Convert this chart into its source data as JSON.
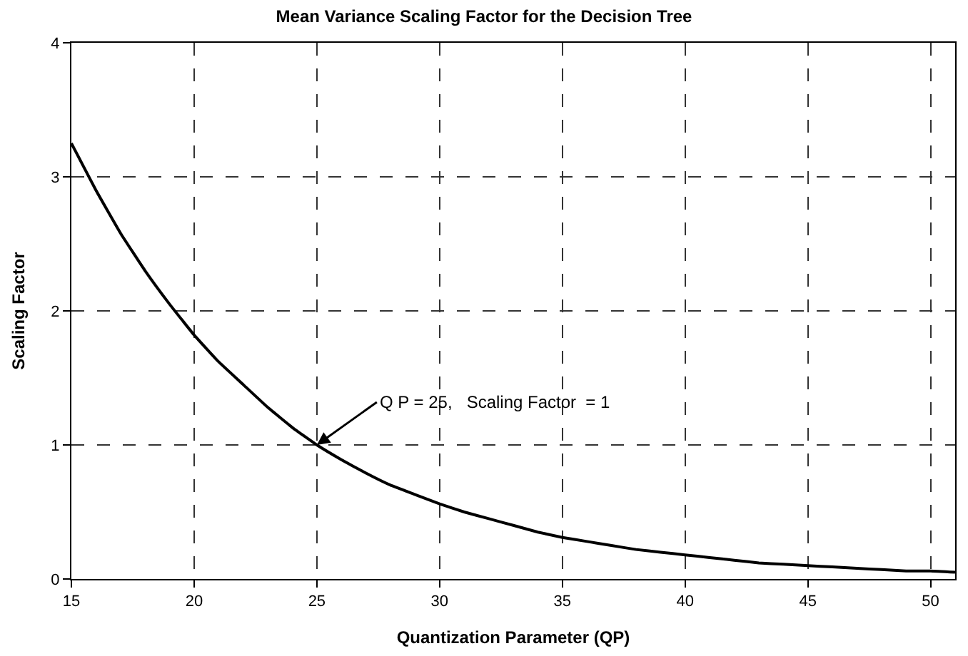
{
  "chart_data": {
    "type": "line",
    "title": "Mean Variance Scaling Factor for the Decision Tree",
    "xlabel": "Quantization Parameter (QP)",
    "ylabel": "Scaling Factor",
    "x": [
      15,
      16,
      17,
      18,
      19,
      20,
      21,
      22,
      23,
      24,
      25,
      26,
      27,
      28,
      29,
      30,
      31,
      32,
      33,
      34,
      35,
      36,
      37,
      38,
      39,
      40,
      41,
      42,
      43,
      44,
      45,
      46,
      47,
      48,
      49,
      50,
      51
    ],
    "series": [
      {
        "color": "#000000",
        "values": [
          3.25,
          2.9,
          2.58,
          2.3,
          2.05,
          1.82,
          1.62,
          1.45,
          1.28,
          1.13,
          1.0,
          0.89,
          0.79,
          0.7,
          0.63,
          0.56,
          0.5,
          0.45,
          0.4,
          0.35,
          0.31,
          0.28,
          0.25,
          0.22,
          0.2,
          0.18,
          0.16,
          0.14,
          0.12,
          0.11,
          0.1,
          0.09,
          0.08,
          0.07,
          0.06,
          0.06,
          0.05
        ]
      }
    ],
    "xlim": [
      15,
      51
    ],
    "xticks": [
      15,
      20,
      25,
      30,
      35,
      40,
      45,
      50
    ],
    "ylim": [
      0,
      4
    ],
    "yticks": [
      0,
      1,
      2,
      3,
      4
    ],
    "grid": true,
    "line_style": "solid",
    "marker": "none",
    "annotations": [
      {
        "text": "Q P = 25,   Scaling Factor  = 1",
        "x": 25,
        "y": 1
      }
    ]
  }
}
